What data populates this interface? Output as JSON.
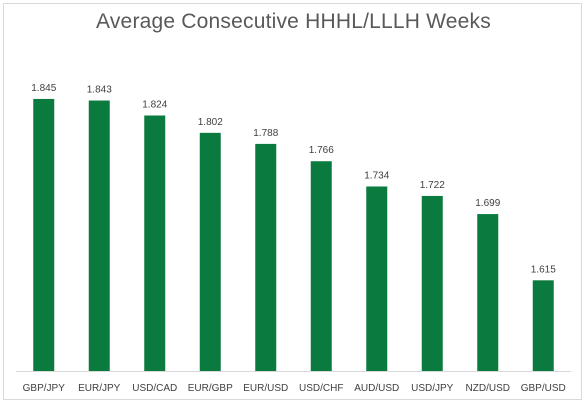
{
  "chart_data": {
    "type": "bar",
    "title": "Average Consecutive HHHL/LLLH Weeks",
    "categories": [
      "GBP/JPY",
      "EUR/JPY",
      "USD/CAD",
      "EUR/GBP",
      "EUR/USD",
      "USD/CHF",
      "AUD/USD",
      "USD/JPY",
      "NZD/USD",
      "GBP/USD"
    ],
    "values": [
      1.845,
      1.843,
      1.824,
      1.802,
      1.788,
      1.766,
      1.734,
      1.722,
      1.699,
      1.615
    ],
    "value_labels": [
      "1.845",
      "1.843",
      "1.824",
      "1.802",
      "1.788",
      "1.766",
      "1.734",
      "1.722",
      "1.699",
      "1.615"
    ],
    "xlabel": "",
    "ylabel": "",
    "ylim": [
      1.5,
      1.85
    ],
    "grid": false,
    "legend": "none",
    "bar_color": "#0b7a3e"
  }
}
